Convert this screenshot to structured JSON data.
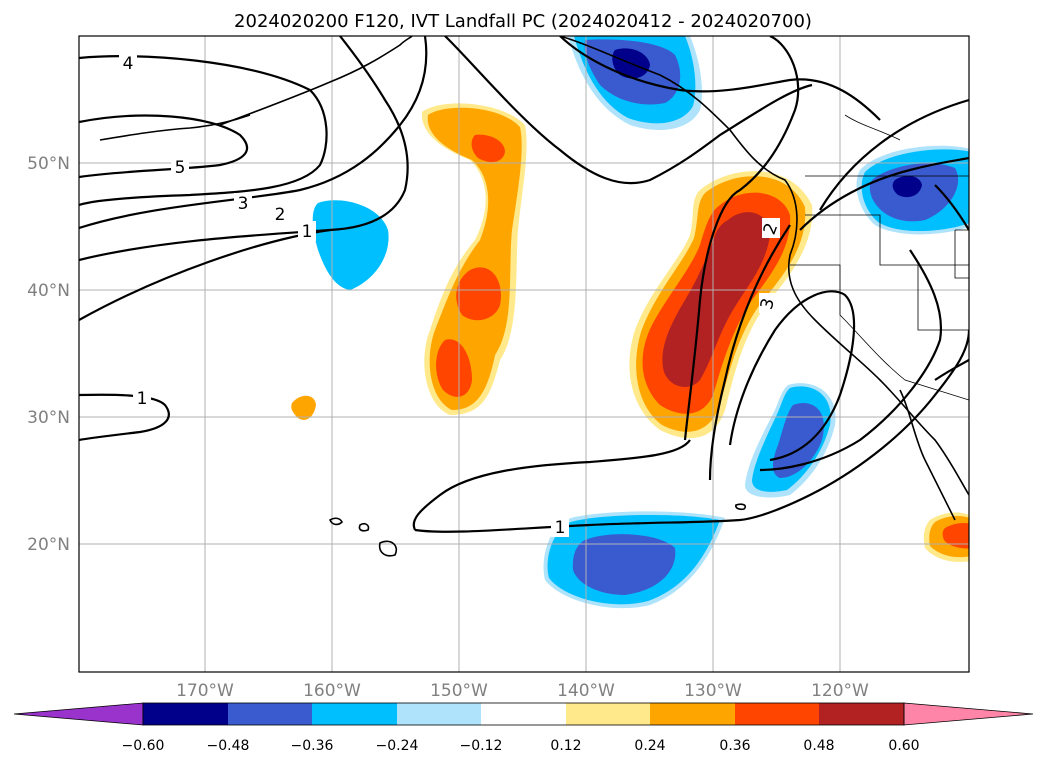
{
  "title": "2024020200 F120, IVT Landfall PC (2024020412 - 2024020700)",
  "map": {
    "lat_labels": [
      "50°N",
      "40°N",
      "30°N",
      "20°N"
    ],
    "lon_labels": [
      "170°W",
      "160°W",
      "150°W",
      "140°W",
      "130°W",
      "120°W"
    ],
    "lon_range": [
      -180,
      -110
    ],
    "lat_range": [
      10,
      60
    ]
  },
  "contour_labels": [
    "4",
    "5",
    "3",
    "2",
    "1",
    "1",
    "1",
    "2",
    "3"
  ],
  "colorbar": {
    "labels": [
      "−0.60",
      "−0.48",
      "−0.36",
      "−0.24",
      "−0.12",
      "0.12",
      "0.24",
      "0.36",
      "0.48",
      "0.60"
    ],
    "colors": [
      "#9933cc",
      "#00008b",
      "#3a5bd0",
      "#00bfff",
      "#aee3fb",
      "#ffffff",
      "#ffe98a",
      "#ffa500",
      "#ff4500",
      "#b22222",
      "#ff85a8"
    ]
  }
}
